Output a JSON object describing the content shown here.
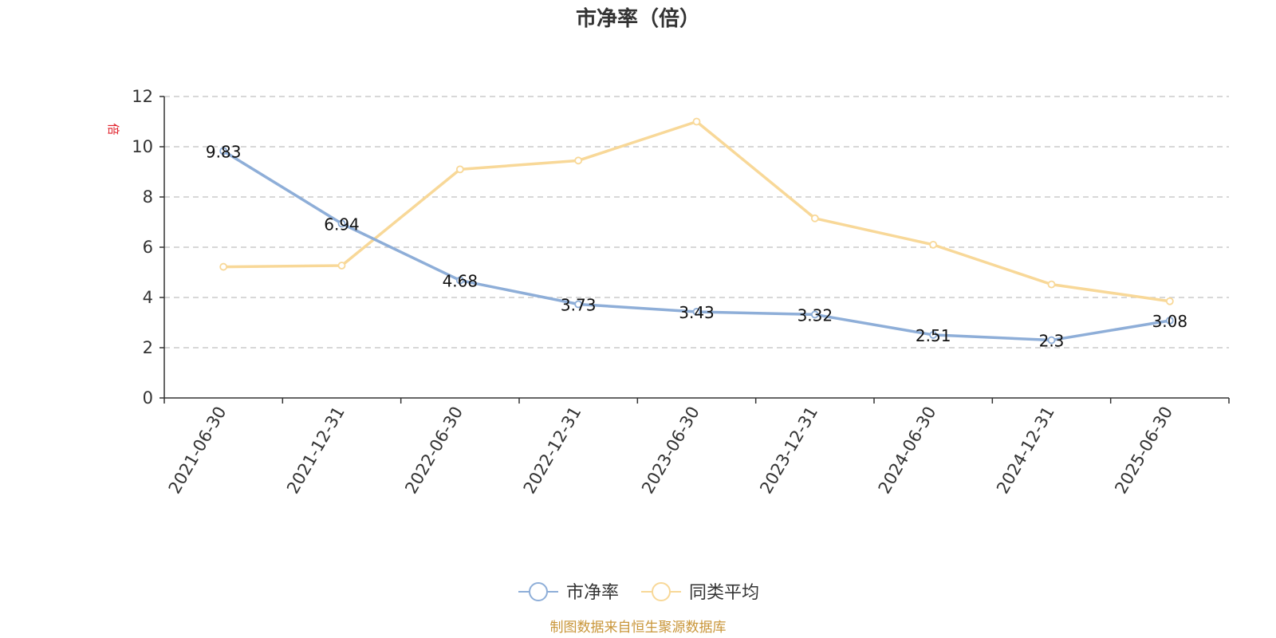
{
  "chart_data": {
    "type": "line",
    "title": "市净率（倍）",
    "unit": "倍",
    "categories": [
      "2021-06-30",
      "2021-12-31",
      "2022-06-30",
      "2022-12-31",
      "2023-06-30",
      "2023-12-31",
      "2024-06-30",
      "2024-12-31",
      "2025-06-30"
    ],
    "series": [
      {
        "name": "市净率",
        "color": "#8eaed8",
        "values": [
          9.83,
          6.94,
          4.68,
          3.73,
          3.43,
          3.32,
          2.51,
          2.3,
          3.08
        ],
        "labels": [
          "9.83",
          "6.94",
          "4.68",
          "3.73",
          "3.43",
          "3.32",
          "2.51",
          "2.3",
          "3.08"
        ]
      },
      {
        "name": "同类平均",
        "color": "#f8d898",
        "values": [
          5.22,
          5.27,
          9.1,
          9.45,
          11.0,
          7.15,
          6.1,
          4.52,
          3.85
        ]
      }
    ],
    "ylim": [
      0,
      12
    ],
    "yticks": [
      0,
      2,
      4,
      6,
      8,
      10,
      12
    ],
    "ytick_labels": [
      "0",
      "2",
      "4",
      "6",
      "8",
      "10",
      "12"
    ],
    "grid": true,
    "legend_position": "bottom-center",
    "source": "制图数据来自恒生聚源数据库"
  }
}
